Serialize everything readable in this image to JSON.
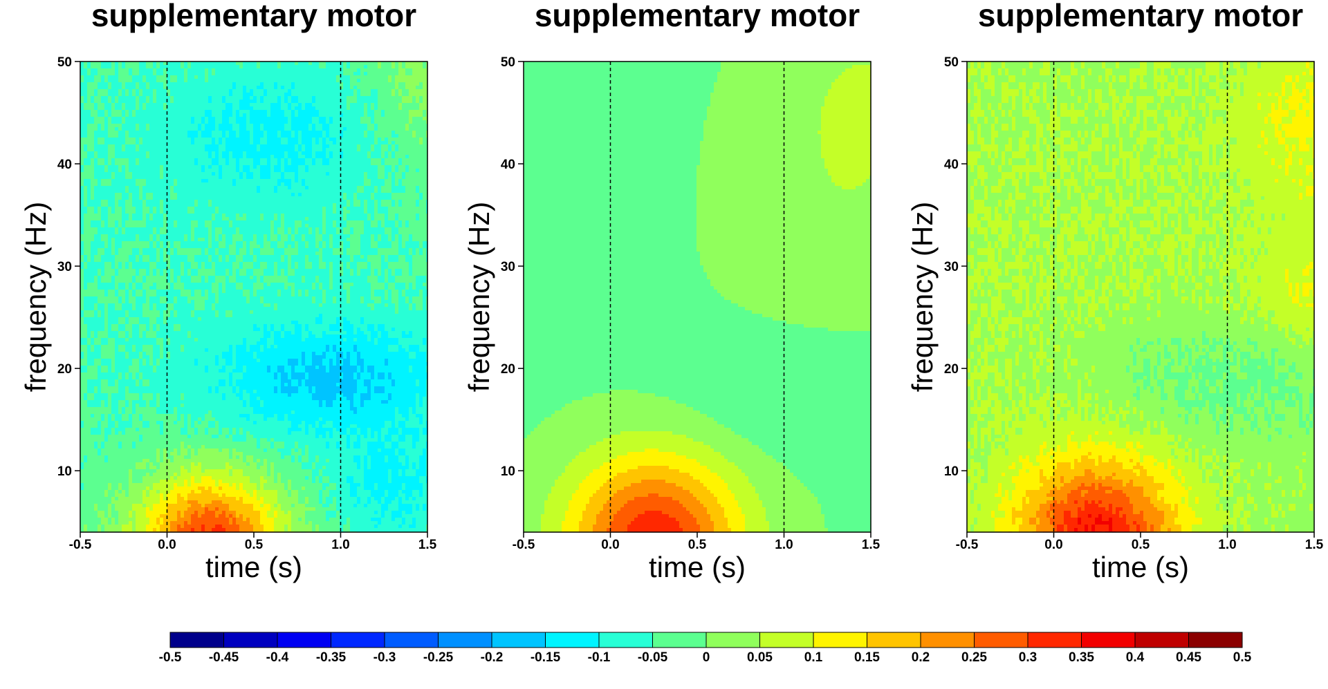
{
  "chart_data": [
    {
      "type": "heatmap",
      "title": "supplementary motor",
      "xlabel": "time (s)",
      "ylabel": "frequency (Hz)",
      "xlim": [
        -0.5,
        1.5
      ],
      "ylim": [
        4,
        50
      ],
      "xticks": [
        "-0.5",
        "0.0",
        "0.5",
        "1.0",
        "1.5"
      ],
      "yticks": [
        "10",
        "20",
        "30",
        "40",
        "50"
      ],
      "markers_x": [
        0.0,
        1.0
      ],
      "noisy": true,
      "components": [
        {
          "t": 0.0,
          "f": 32,
          "st": 3.0,
          "sf": 30,
          "a": -0.05
        },
        {
          "t": 0.6,
          "f": 43,
          "st": 0.45,
          "sf": 5,
          "a": -0.07
        },
        {
          "t": 0.95,
          "f": 19,
          "st": 0.5,
          "sf": 4,
          "a": -0.12
        },
        {
          "t": 1.3,
          "f": 8,
          "st": 0.25,
          "sf": 4,
          "a": -0.08
        },
        {
          "t": 0.25,
          "f": 3,
          "st": 0.28,
          "sf": 4.5,
          "a": 0.35
        },
        {
          "t": 1.5,
          "f": 48,
          "st": 0.25,
          "sf": 6,
          "a": 0.06
        }
      ]
    },
    {
      "type": "heatmap",
      "title": "supplementary motor",
      "xlabel": "time (s)",
      "ylabel": "frequency (Hz)",
      "xlim": [
        -0.5,
        1.5
      ],
      "ylim": [
        4,
        50
      ],
      "xticks": [
        "-0.5",
        "0.0",
        "0.5",
        "1.0",
        "1.5"
      ],
      "yticks": [
        "10",
        "20",
        "30",
        "40",
        "50"
      ],
      "markers_x": [
        0.0,
        1.0
      ],
      "noisy": false,
      "components": [
        {
          "t": 0.0,
          "f": 30,
          "st": 3.0,
          "sf": 40,
          "a": -0.01
        },
        {
          "t": 0.25,
          "f": 3,
          "st": 0.35,
          "sf": 6,
          "a": 0.35
        },
        {
          "t": 1.15,
          "f": 18,
          "st": 0.5,
          "sf": 4.5,
          "a": -0.055
        },
        {
          "t": 0.15,
          "f": 45,
          "st": 0.12,
          "sf": 4,
          "a": -0.04
        },
        {
          "t": 1.3,
          "f": 35,
          "st": 0.45,
          "sf": 12,
          "a": 0.05
        },
        {
          "t": 1.5,
          "f": 47,
          "st": 0.3,
          "sf": 6,
          "a": 0.04
        }
      ]
    },
    {
      "type": "heatmap",
      "title": "supplementary motor",
      "xlabel": "time (s)",
      "ylabel": "frequency (Hz)",
      "xlim": [
        -0.5,
        1.5
      ],
      "ylim": [
        4,
        50
      ],
      "xticks": [
        "-0.5",
        "0.0",
        "0.5",
        "1.0",
        "1.5"
      ],
      "yticks": [
        "10",
        "20",
        "30",
        "40",
        "50"
      ],
      "markers_x": [
        0.0,
        1.0
      ],
      "noisy": true,
      "components": [
        {
          "t": 0.0,
          "f": 30,
          "st": 3.0,
          "sf": 40,
          "a": 0.05
        },
        {
          "t": 0.25,
          "f": 3,
          "st": 0.32,
          "sf": 5.5,
          "a": 0.33
        },
        {
          "t": 1.0,
          "f": 19,
          "st": 0.55,
          "sf": 4.5,
          "a": -0.06
        },
        {
          "t": 1.5,
          "f": 44,
          "st": 0.3,
          "sf": 6,
          "a": 0.07
        },
        {
          "t": 1.5,
          "f": 27,
          "st": 0.25,
          "sf": 4,
          "a": 0.06
        }
      ]
    }
  ],
  "colorbar": {
    "ticks": [
      "-0.5",
      "-0.45",
      "-0.4",
      "-0.35",
      "-0.3",
      "-0.25",
      "-0.2",
      "-0.15",
      "-0.1",
      "-0.05",
      "0",
      "0.05",
      "0.1",
      "0.15",
      "0.2",
      "0.25",
      "0.3",
      "0.35",
      "0.4",
      "0.45",
      "0.5"
    ],
    "colors": [
      "#00008B",
      "#0000BF",
      "#0000F2",
      "#0028FF",
      "#005CFF",
      "#0090FF",
      "#00C4FF",
      "#00F4FF",
      "#28FFD6",
      "#5CFF90",
      "#90FF5C",
      "#C4FF28",
      "#FFF400",
      "#FFC400",
      "#FF9000",
      "#FF5C00",
      "#FF2800",
      "#F20000",
      "#BF0000",
      "#8B0000"
    ]
  }
}
